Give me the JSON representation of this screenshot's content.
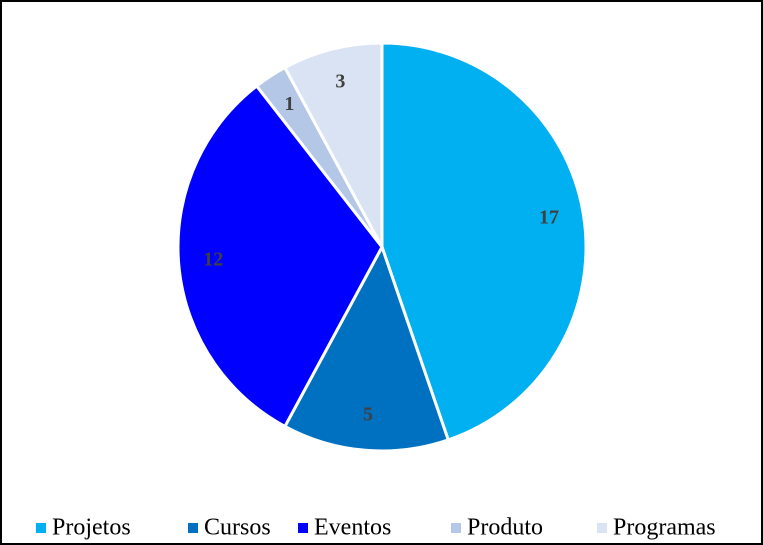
{
  "chart_data": {
    "type": "pie",
    "categories": [
      "Projetos",
      "Cursos",
      "Eventos",
      "Produto",
      "Programas"
    ],
    "values": [
      17,
      5,
      12,
      1,
      3
    ],
    "colors": [
      "#00b0f0",
      "#0070c0",
      "#0000ff",
      "#b4c7e7",
      "#dae3f3"
    ],
    "legend": "bottom"
  }
}
